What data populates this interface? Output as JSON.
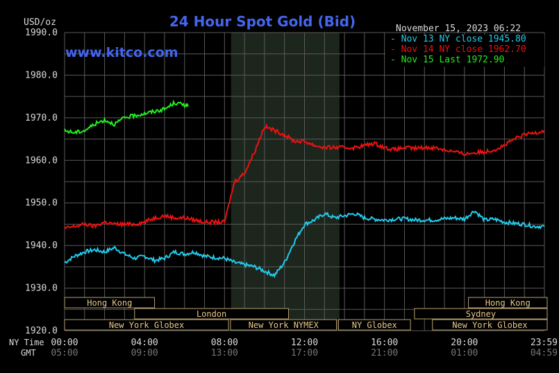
{
  "chart_data": {
    "type": "line",
    "title": "24 Hour Spot Gold (Bid)",
    "units_label": "USD/oz",
    "watermark": "www.kitco.com",
    "timestamp": "November 15, 2023 06:22",
    "ylim": [
      1920,
      1990
    ],
    "y_ticks": [
      1990,
      1980,
      1970,
      1960,
      1950,
      1940,
      1930,
      1920
    ],
    "y_tick_labels": [
      "1990.0",
      "1980.0",
      "1970.0",
      "1960.0",
      "1950.0",
      "1940.0",
      "1930.0",
      "1920.0"
    ],
    "xlim": [
      0,
      24
    ],
    "x_ticks": [
      0,
      4,
      8,
      12,
      16,
      20,
      23.98
    ],
    "x_tick_labels_ny": [
      "00:00",
      "04:00",
      "08:00",
      "12:00",
      "16:00",
      "20:00",
      "23:59"
    ],
    "x_tick_labels_gmt": [
      "05:00",
      "09:00",
      "13:00",
      "17:00",
      "21:00",
      "01:00",
      "04:59"
    ],
    "x_axis_label_ny": "NY Time",
    "x_axis_label_gmt": "GMT",
    "grid": true,
    "legend_position": "top-right",
    "highlight_session": [
      8.33,
      13.75
    ],
    "series": [
      {
        "name": "Nov 13 NY close 1945.80",
        "color": "#22ccee",
        "x": [
          0,
          0.5,
          1,
          1.5,
          2,
          2.5,
          3,
          3.5,
          4,
          4.5,
          5,
          5.5,
          6,
          6.5,
          7,
          7.5,
          8,
          8.5,
          9,
          9.5,
          10,
          10.5,
          11,
          11.5,
          12,
          12.5,
          13,
          13.5,
          14,
          14.5,
          15,
          15.5,
          16,
          16.5,
          17,
          17.5,
          18,
          18.5,
          19,
          19.5,
          20,
          20.5,
          21,
          21.5,
          22,
          22.5,
          23,
          23.5,
          24
        ],
        "values": [
          1936,
          1937.5,
          1938.5,
          1939,
          1938.5,
          1939.5,
          1938,
          1937,
          1937.5,
          1936.5,
          1937,
          1938.5,
          1938,
          1938.5,
          1937.5,
          1937.2,
          1937,
          1936,
          1935.5,
          1935,
          1934,
          1933,
          1936,
          1941,
          1945,
          1946,
          1947.5,
          1946.5,
          1947,
          1947.5,
          1946.5,
          1946.2,
          1946,
          1946.2,
          1946.3,
          1946,
          1946,
          1946,
          1946.3,
          1946.5,
          1946.2,
          1948.2,
          1946,
          1946.2,
          1945.5,
          1945.2,
          1945,
          1944.5,
          1944.5
        ]
      },
      {
        "name": "Nov 14 NY close 1962.70",
        "color": "#ee1111",
        "x": [
          0,
          0.5,
          1,
          1.5,
          2,
          2.5,
          3,
          3.5,
          4,
          4.5,
          5,
          5.5,
          6,
          6.5,
          7,
          7.5,
          8,
          8.5,
          9,
          9.5,
          10,
          10.5,
          11,
          11.5,
          12,
          12.5,
          13,
          13.5,
          14,
          14.5,
          15,
          15.5,
          16,
          16.5,
          17,
          17.5,
          18,
          18.5,
          19,
          19.5,
          20,
          20.5,
          21,
          21.5,
          22,
          22.5,
          23,
          23.5,
          24
        ],
        "values": [
          1944,
          1944.5,
          1945,
          1944.5,
          1945.5,
          1945,
          1945,
          1945,
          1945.5,
          1946.5,
          1947,
          1946.5,
          1946.5,
          1946,
          1945.5,
          1945.5,
          1945.5,
          1955,
          1957,
          1962,
          1968,
          1967,
          1966,
          1964.5,
          1964.5,
          1963.5,
          1963,
          1963,
          1963,
          1963,
          1963.5,
          1964,
          1963,
          1962.5,
          1963,
          1962.8,
          1963,
          1963,
          1962.5,
          1962,
          1961.5,
          1961.8,
          1962,
          1962.5,
          1963.5,
          1965,
          1966,
          1966.5,
          1967
        ]
      },
      {
        "name": "Nov 15 Last 1972.90",
        "color": "#22ee22",
        "x": [
          0,
          0.5,
          1,
          1.5,
          2,
          2.5,
          3,
          3.5,
          4,
          4.5,
          5,
          5.5,
          6,
          6.2
        ],
        "values": [
          1967,
          1966.5,
          1967,
          1968.5,
          1969.5,
          1968.5,
          1970,
          1970.5,
          1971,
          1971.5,
          1972,
          1973.5,
          1973,
          1972.9
        ]
      }
    ],
    "sessions": [
      {
        "label": "Hong Kong",
        "start": -0.2,
        "end": 4.5,
        "row": 0
      },
      {
        "label": "Hong Kong",
        "start": 20.2,
        "end": 24.2,
        "row": 0
      },
      {
        "label": "London",
        "start": 3.5,
        "end": 11.2,
        "row": 1
      },
      {
        "label": "Sydney",
        "start": 17.5,
        "end": 24.2,
        "row": 1
      },
      {
        "label": "New York Globex",
        "start": -0.2,
        "end": 8.2,
        "row": 2
      },
      {
        "label": "New York NYMEX",
        "start": 8.3,
        "end": 13.6,
        "row": 2
      },
      {
        "label": "NY Globex",
        "start": 13.7,
        "end": 17.3,
        "row": 2
      },
      {
        "label": "New York Globex",
        "start": 18.4,
        "end": 24.2,
        "row": 2
      }
    ]
  }
}
